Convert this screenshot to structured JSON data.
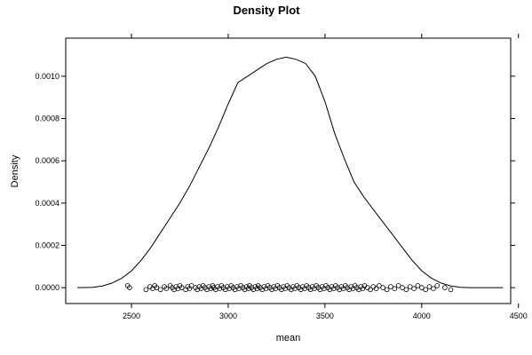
{
  "chart_data": {
    "type": "line",
    "title": "Density Plot",
    "xlabel": "mean",
    "ylabel": "Density",
    "xlim": [
      2160,
      4460
    ],
    "ylim": [
      -7.5e-05,
      0.00118
    ],
    "x_ticks": [
      2500,
      3000,
      3500,
      4000,
      4500
    ],
    "x_tick_labels": [
      "2500",
      "3000",
      "3500",
      "4000",
      "4500"
    ],
    "y_ticks": [
      0.0,
      0.0002,
      0.0004,
      0.0006,
      0.0008,
      0.001
    ],
    "y_tick_labels": [
      "0.0000",
      "0.0002",
      "0.0004",
      "0.0006",
      "0.0008",
      "0.0010"
    ],
    "grid": false,
    "series": [
      {
        "x": [
          2220,
          2300,
          2350,
          2400,
          2450,
          2500,
          2550,
          2600,
          2650,
          2700,
          2750,
          2800,
          2850,
          2900,
          2950,
          3000,
          3050,
          3100,
          3150,
          3200,
          3250,
          3300,
          3350,
          3400,
          3450,
          3500,
          3550,
          3600,
          3650,
          3700,
          3750,
          3800,
          3850,
          3900,
          3950,
          4000,
          4050,
          4100,
          4150,
          4200,
          4250,
          4300,
          4350,
          4420
        ],
        "y": [
          0.0,
          2e-06,
          8e-06,
          2.2e-05,
          4.5e-05,
          8e-05,
          0.00013,
          0.00019,
          0.00026,
          0.00033,
          0.0004,
          0.00048,
          0.00057,
          0.00066,
          0.00076,
          0.00087,
          0.00097,
          0.001,
          0.00103,
          0.00106,
          0.00108,
          0.00109,
          0.00108,
          0.00106,
          0.001,
          0.00088,
          0.00073,
          0.00061,
          0.0005,
          0.00043,
          0.00037,
          0.00031,
          0.00025,
          0.00019,
          0.00013,
          8e-05,
          4.5e-05,
          2.2e-05,
          8e-06,
          2e-06,
          0.0,
          0.0,
          0.0,
          0.0
        ]
      }
    ],
    "rug": [
      2480,
      2490,
      2575,
      2595,
      2610,
      2620,
      2630,
      2650,
      2670,
      2680,
      2700,
      2710,
      2720,
      2730,
      2740,
      2750,
      2760,
      2780,
      2790,
      2800,
      2810,
      2830,
      2840,
      2850,
      2860,
      2870,
      2880,
      2890,
      2900,
      2910,
      2920,
      2925,
      2935,
      2945,
      2955,
      2965,
      2975,
      2985,
      2995,
      3005,
      3015,
      3025,
      3035,
      3045,
      3055,
      3065,
      3075,
      3085,
      3095,
      3105,
      3110,
      3120,
      3130,
      3140,
      3150,
      3155,
      3165,
      3175,
      3185,
      3195,
      3205,
      3215,
      3225,
      3235,
      3245,
      3255,
      3265,
      3275,
      3285,
      3295,
      3305,
      3315,
      3325,
      3335,
      3345,
      3355,
      3365,
      3375,
      3385,
      3395,
      3405,
      3415,
      3425,
      3435,
      3445,
      3455,
      3465,
      3475,
      3485,
      3495,
      3505,
      3515,
      3525,
      3535,
      3545,
      3555,
      3565,
      3575,
      3585,
      3595,
      3605,
      3615,
      3625,
      3635,
      3645,
      3655,
      3665,
      3675,
      3685,
      3695,
      3705,
      3720,
      3735,
      3750,
      3765,
      3780,
      3800,
      3820,
      3840,
      3860,
      3880,
      3900,
      3920,
      3940,
      3960,
      3980,
      4000,
      4020,
      4040,
      4060,
      4080,
      4120,
      4150
    ]
  }
}
